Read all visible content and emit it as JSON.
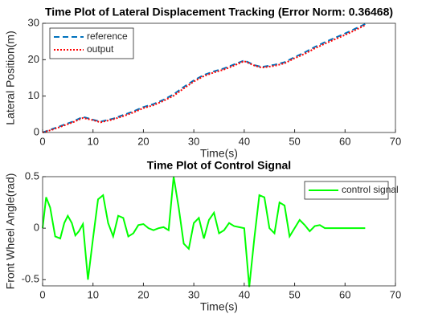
{
  "chart_data": [
    {
      "type": "line",
      "title": "Time Plot of Lateral Displacement Tracking (Error Norm: 0.36468)",
      "x_label": "Time(s)",
      "y_label": "Lateral Position(m)",
      "x": [
        0,
        2,
        4,
        6,
        8,
        10,
        11.5,
        14,
        16,
        18,
        20,
        22,
        24,
        26,
        28,
        30,
        32,
        34,
        36,
        38,
        40,
        42,
        43.5,
        46,
        48,
        50,
        52,
        54,
        56,
        58,
        60,
        62,
        64
      ],
      "series": [
        {
          "name": "reference",
          "color": "#0072bd",
          "line_style": "dashed",
          "values": [
            0,
            1,
            2,
            3,
            4.3,
            3.5,
            3,
            3.8,
            4.8,
            5.8,
            7,
            7.8,
            9,
            10.5,
            12.5,
            14.3,
            15.8,
            16.8,
            17.6,
            18.7,
            19.8,
            18.5,
            18,
            18.6,
            19.3,
            20.7,
            22,
            23.5,
            24.8,
            26,
            27.2,
            28.5,
            29.8
          ]
        },
        {
          "name": "output",
          "color": "#ff0000",
          "line_style": "dotted",
          "values": [
            0,
            0.8,
            1.8,
            2.8,
            4,
            3.4,
            2.8,
            3.6,
            4.5,
            5.5,
            6.7,
            7.5,
            8.7,
            10.1,
            12.1,
            14,
            15.5,
            16.5,
            17.3,
            18.4,
            19.6,
            18.4,
            17.8,
            18.3,
            19,
            20.4,
            21.6,
            23.1,
            24.4,
            25.6,
            26.8,
            28.1,
            29.5
          ]
        }
      ],
      "xlim": [
        0,
        70
      ],
      "xticks": [
        0,
        10,
        20,
        30,
        40,
        50,
        60,
        70
      ],
      "ylim": [
        0,
        30
      ],
      "yticks": [
        0,
        10,
        20,
        30
      ],
      "grid": false,
      "legend": "top-left"
    },
    {
      "type": "line",
      "title": "Time Plot of Control Signal",
      "x_label": "Time(s)",
      "y_label": "Front Wheel Angle(rad)",
      "x": [
        0,
        0.7,
        1.5,
        2.5,
        3.5,
        4.3,
        5,
        5.8,
        6.5,
        7.2,
        8,
        9,
        10,
        11,
        12,
        13,
        14,
        15,
        16,
        17,
        18,
        19,
        20,
        21,
        22,
        23,
        24,
        25,
        26,
        27,
        28,
        29,
        30,
        31,
        32,
        33,
        34,
        35,
        36,
        37,
        38,
        39,
        40,
        41,
        42,
        43,
        44,
        45,
        46,
        47,
        48,
        49,
        50,
        51,
        52,
        53,
        54,
        55,
        56,
        58,
        60,
        62,
        64
      ],
      "series": [
        {
          "name": "control signal",
          "color": "#00ff00",
          "line_style": "solid",
          "values": [
            0,
            0.3,
            0.2,
            -0.08,
            -0.1,
            0.05,
            0.12,
            0.05,
            -0.07,
            -0.03,
            0.04,
            -0.5,
            -0.1,
            0.28,
            0.32,
            0.05,
            -0.08,
            0.12,
            0.1,
            -0.08,
            -0.05,
            0.03,
            0.04,
            0,
            -0.02,
            0,
            0.01,
            -0.02,
            0.5,
            0.2,
            -0.15,
            -0.2,
            0.05,
            0.1,
            -0.1,
            0.08,
            0.15,
            -0.05,
            -0.02,
            0.05,
            0.02,
            0.01,
            0,
            -0.57,
            -0.1,
            0.32,
            0.3,
            0,
            -0.05,
            0.25,
            0.22,
            -0.08,
            0,
            0.08,
            0.03,
            -0.03,
            0.02,
            0.03,
            0,
            0,
            0,
            0,
            0
          ]
        }
      ],
      "xlim": [
        0,
        70
      ],
      "xticks": [
        0,
        10,
        20,
        30,
        40,
        50,
        60,
        70
      ],
      "ylim": [
        -0.56,
        0.5
      ],
      "yticks": [
        -0.5,
        0,
        0.5
      ],
      "grid": false,
      "legend": "top-right"
    }
  ]
}
